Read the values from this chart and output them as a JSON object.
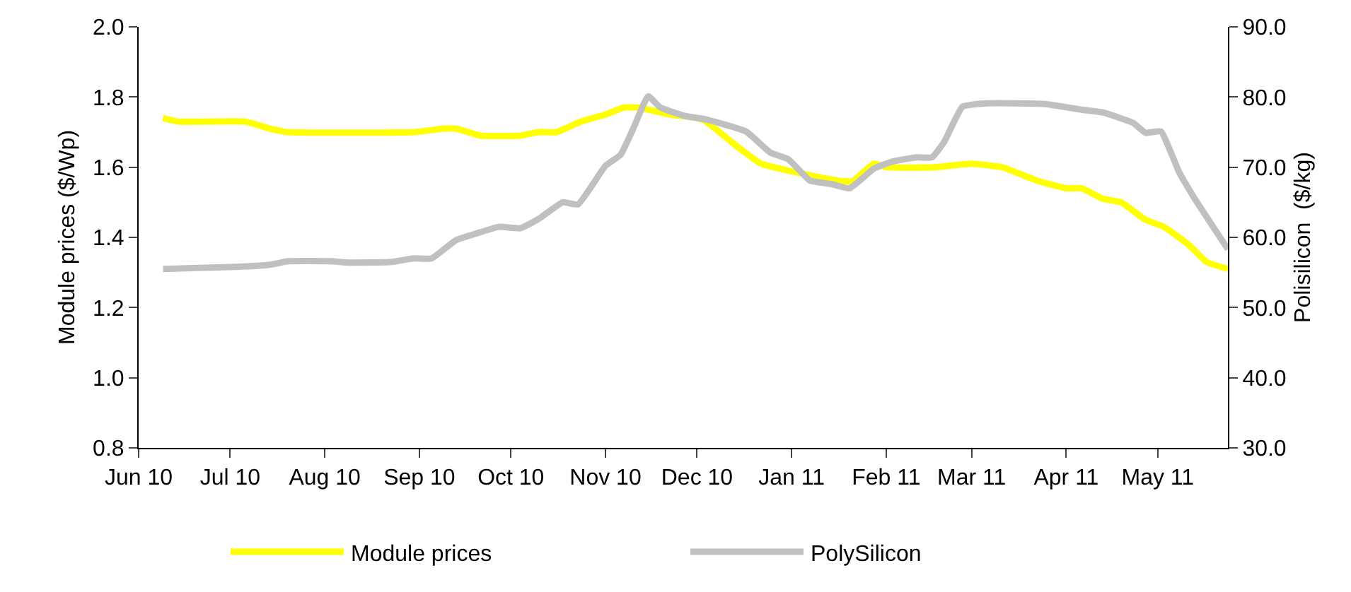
{
  "chart_data": {
    "type": "line",
    "ylabel": "Module prices ($/Wp)",
    "y2label": "Polisilicon  ($/kg)",
    "xlim": [
      "2010-06-01",
      "2011-05-24"
    ],
    "xticks": [
      {
        "value": "2010-06-01",
        "label": "Jun 10"
      },
      {
        "value": "2010-07-01",
        "label": "Jul 10"
      },
      {
        "value": "2010-08-01",
        "label": "Aug 10"
      },
      {
        "value": "2010-09-01",
        "label": "Sep 10"
      },
      {
        "value": "2010-10-01",
        "label": "Oct 10"
      },
      {
        "value": "2010-11-01",
        "label": "Nov 10"
      },
      {
        "value": "2010-12-01",
        "label": "Dec 10"
      },
      {
        "value": "2011-01-01",
        "label": "Jan 11"
      },
      {
        "value": "2011-02-01",
        "label": "Feb 11"
      },
      {
        "value": "2011-03-01",
        "label": "Mar 11"
      },
      {
        "value": "2011-04-01",
        "label": "Apr 11"
      },
      {
        "value": "2011-05-01",
        "label": "May 11"
      }
    ],
    "ylim": [
      0.8,
      2.0
    ],
    "yticks": [
      {
        "value": 0.8,
        "label": "0.8"
      },
      {
        "value": 1.0,
        "label": "1.0"
      },
      {
        "value": 1.2,
        "label": "1.2"
      },
      {
        "value": 1.4,
        "label": "1.4"
      },
      {
        "value": 1.6,
        "label": "1.6"
      },
      {
        "value": 1.8,
        "label": "1.8"
      },
      {
        "value": 2.0,
        "label": "2.0"
      }
    ],
    "y2lim": [
      30,
      90
    ],
    "y2ticks": [
      {
        "value": 30,
        "label": "30.0"
      },
      {
        "value": 40,
        "label": "40.0"
      },
      {
        "value": 50,
        "label": "50.0"
      },
      {
        "value": 60,
        "label": "60.0"
      },
      {
        "value": 70,
        "label": "70.0"
      },
      {
        "value": 80,
        "label": "80.0"
      },
      {
        "value": 90,
        "label": "90.0"
      }
    ],
    "legend": "bottom",
    "marker": "none",
    "line_style": "solid",
    "series": [
      {
        "name": "Module prices",
        "color": "#ffff00",
        "x": [
          "2010-06-09",
          "2010-06-14",
          "2010-07-06",
          "2010-07-14",
          "2010-07-20",
          "2010-08-30",
          "2010-09-09",
          "2010-09-13",
          "2010-09-21",
          "2010-10-04",
          "2010-10-10",
          "2010-10-16",
          "2010-10-24",
          "2010-11-01",
          "2010-11-07",
          "2010-11-12",
          "2010-11-17",
          "2010-11-22",
          "2010-12-01",
          "2010-12-04",
          "2010-12-14",
          "2010-12-22",
          "2010-12-31",
          "2011-01-11",
          "2011-01-18",
          "2011-01-21",
          "2011-01-28",
          "2011-02-01",
          "2011-02-17",
          "2011-03-01",
          "2011-03-11",
          "2011-03-23",
          "2011-04-01",
          "2011-04-06",
          "2011-04-13",
          "2011-04-19",
          "2011-04-27",
          "2011-05-03",
          "2011-05-11",
          "2011-05-17",
          "2011-05-24"
        ],
        "values": [
          1.74,
          1.73,
          1.73,
          1.71,
          1.7,
          1.7,
          1.71,
          1.71,
          1.69,
          1.69,
          1.7,
          1.7,
          1.73,
          1.75,
          1.77,
          1.77,
          1.76,
          1.75,
          1.74,
          1.73,
          1.66,
          1.61,
          1.59,
          1.57,
          1.56,
          1.56,
          1.61,
          1.6,
          1.6,
          1.61,
          1.6,
          1.56,
          1.54,
          1.54,
          1.51,
          1.5,
          1.45,
          1.43,
          1.38,
          1.33,
          1.31
        ]
      },
      {
        "name": "PolySilicon",
        "color": "#c0c0c0",
        "axis": "y2",
        "x": [
          "2010-06-09",
          "2010-07-03",
          "2010-07-14",
          "2010-07-20",
          "2010-08-03",
          "2010-08-09",
          "2010-08-23",
          "2010-08-30",
          "2010-09-05",
          "2010-09-13",
          "2010-09-20",
          "2010-09-27",
          "2010-10-04",
          "2010-10-10",
          "2010-10-18",
          "2010-10-23",
          "2010-11-01",
          "2010-11-06",
          "2010-11-10",
          "2010-11-15",
          "2010-11-19",
          "2010-11-27",
          "2010-12-04",
          "2010-12-17",
          "2010-12-25",
          "2010-12-31",
          "2011-01-07",
          "2011-01-14",
          "2011-01-20",
          "2011-01-28",
          "2011-02-03",
          "2011-02-11",
          "2011-02-16",
          "2011-02-20",
          "2011-02-26",
          "2011-03-06",
          "2011-03-25",
          "2011-04-06",
          "2011-04-13",
          "2011-04-23",
          "2011-04-27",
          "2011-05-02",
          "2011-05-08",
          "2011-05-13",
          "2011-05-24"
        ],
        "values": [
          55.5,
          55.8,
          56.1,
          56.6,
          56.6,
          56.4,
          56.5,
          57.0,
          57.0,
          59.6,
          60.6,
          61.5,
          61.3,
          62.6,
          65.0,
          64.7,
          70.2,
          71.8,
          75.4,
          80.1,
          78.5,
          77.3,
          76.8,
          75.1,
          72.1,
          71.1,
          68.1,
          67.6,
          67.0,
          69.8,
          70.8,
          71.4,
          71.4,
          73.6,
          78.6,
          79.1,
          79.0,
          78.2,
          77.8,
          76.3,
          74.9,
          75.1,
          69.3,
          65.6,
          58.3
        ]
      }
    ]
  }
}
